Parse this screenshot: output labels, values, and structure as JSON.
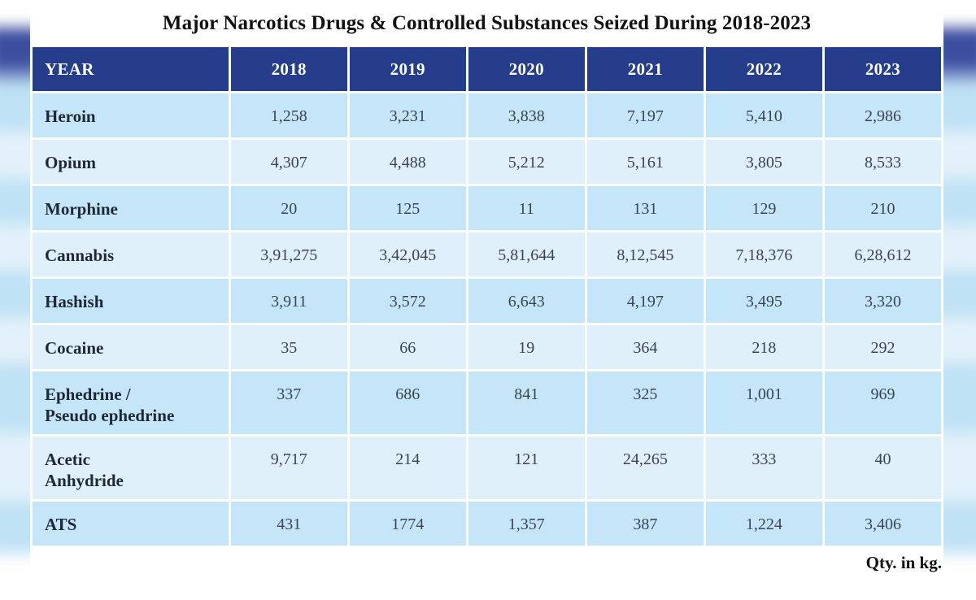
{
  "colors": {
    "header_bg": "#253d8b",
    "header_text": "#ffffff",
    "row_dark": "#c5e6f8",
    "row_light": "#dff0fa",
    "label_text": "#1e2836",
    "value_text": "#3c4452",
    "title_text": "#121212"
  },
  "chart_data": {
    "type": "table",
    "title": "Major Narcotics Drugs & Controlled Substances Seized During 2018-2023",
    "annotation": "Qty. in kg.",
    "unit": "kg",
    "columns": [
      "YEAR",
      "2018",
      "2019",
      "2020",
      "2021",
      "2022",
      "2023"
    ],
    "rows": [
      {
        "label": "Heroin",
        "values": [
          "1,258",
          "3,231",
          "3,838",
          "7,197",
          "5,410",
          "2,986"
        ]
      },
      {
        "label": "Opium",
        "values": [
          "4,307",
          "4,488",
          "5,212",
          "5,161",
          "3,805",
          "8,533"
        ]
      },
      {
        "label": "Morphine",
        "values": [
          "20",
          "125",
          "11",
          "131",
          "129",
          "210"
        ]
      },
      {
        "label": "Cannabis",
        "values": [
          "3,91,275",
          "3,42,045",
          "5,81,644",
          "8,12,545",
          "7,18,376",
          "6,28,612"
        ]
      },
      {
        "label": "Hashish",
        "values": [
          "3,911",
          "3,572",
          "6,643",
          "4,197",
          "3,495",
          "3,320"
        ]
      },
      {
        "label": "Cocaine",
        "values": [
          "35",
          "66",
          "19",
          "364",
          "218",
          "292"
        ]
      },
      {
        "label": "Ephedrine /\nPseudo ephedrine",
        "values": [
          "337",
          "686",
          "841",
          "325",
          "1,001",
          "969"
        ]
      },
      {
        "label": "Acetic\nAnhydride",
        "values": [
          "9,717",
          "214",
          "121",
          "24,265",
          "333",
          "40"
        ]
      },
      {
        "label": "ATS",
        "values": [
          "431",
          "1774",
          "1,357",
          "387",
          "1,224",
          "3,406"
        ]
      }
    ]
  }
}
